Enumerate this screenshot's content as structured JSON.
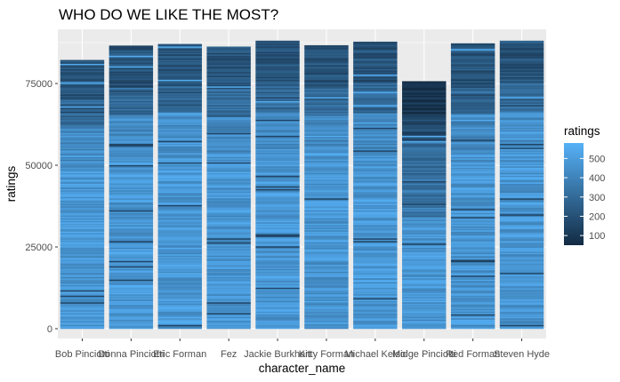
{
  "chart_data": {
    "type": "bar",
    "title": "WHO DO WE LIKE THE MOST?",
    "xlabel": "character_name",
    "ylabel": "ratings",
    "categories": [
      "Bob Pinciotti",
      "Donna Pinciotti",
      "Eric Forman",
      "Fez",
      "Jackie Burkhart",
      "Kitty Forman",
      "Michael Kelso",
      "Midge Pinciotti",
      "Red Forman",
      "Steven Hyde"
    ],
    "values": [
      82200,
      86600,
      87100,
      86300,
      88100,
      86700,
      87800,
      75700,
      87300,
      88100
    ],
    "ylim": [
      0,
      92500
    ],
    "yticks": [
      0,
      25000,
      50000,
      75000
    ],
    "ytick_labels": [
      "0",
      "25000",
      "50000",
      "75000"
    ],
    "fill": "stacked segments colored by ratings (dark navy = low, light blue = high); higher-count segments concentrated in lower portion, darker low-rating segments near top of each bar",
    "legend": {
      "title": "ratings",
      "position": "right",
      "breaks": [
        100,
        200,
        300,
        400,
        500
      ],
      "labels": [
        "100",
        "200",
        "300",
        "400",
        "500"
      ],
      "range": [
        50,
        580
      ],
      "low_color": "#132B43",
      "high_color": "#56B1F7"
    },
    "grid": true,
    "panel_background": "#EBEBEB",
    "gridline_color": "#FFFFFF"
  }
}
